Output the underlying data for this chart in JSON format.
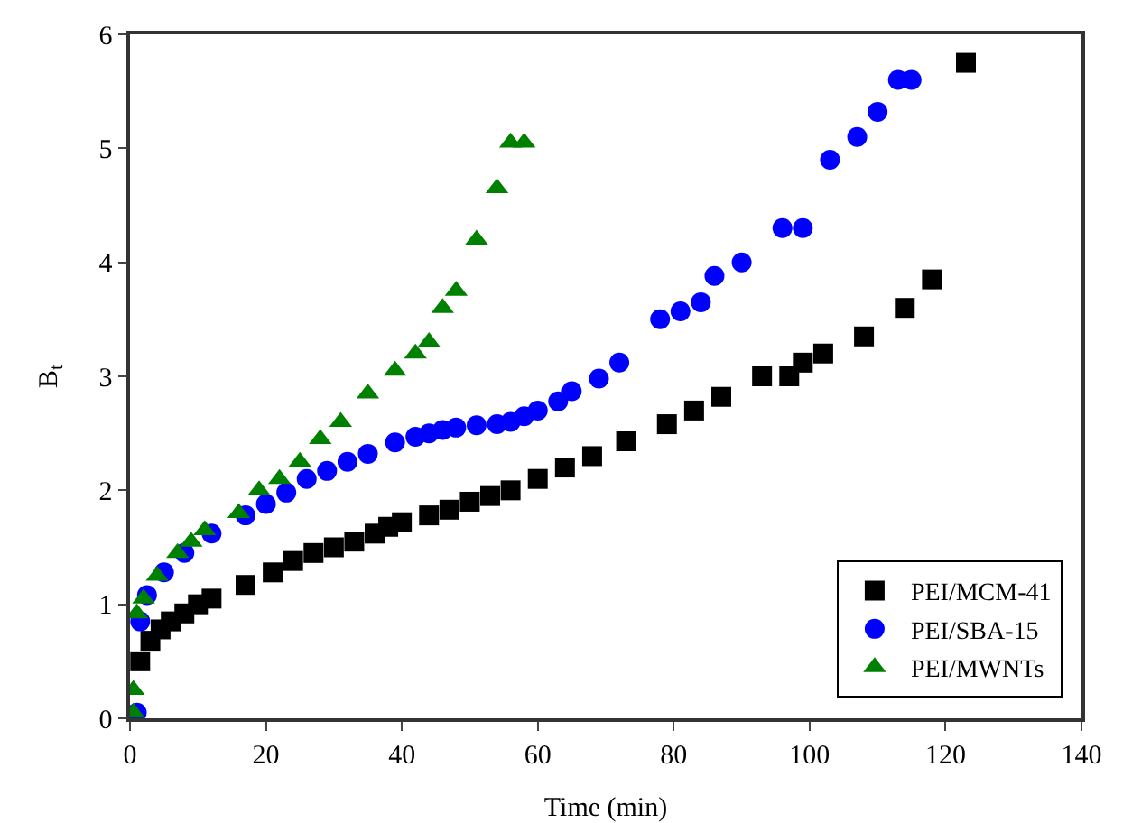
{
  "chart_data": {
    "type": "scatter",
    "xlabel": "Time (min)",
    "ylabel": "B$_{t}$",
    "xlim": [
      0,
      140
    ],
    "ylim": [
      0,
      6
    ],
    "xticks": [
      0,
      20,
      40,
      60,
      80,
      100,
      120,
      140
    ],
    "yticks": [
      0,
      1,
      2,
      3,
      4,
      5,
      6
    ],
    "grid": false,
    "legend": "bottom right",
    "series": [
      {
        "name": "PEI/MCM-41",
        "color": "#000000",
        "marker": "square",
        "x": [
          1.5,
          3,
          4.5,
          6,
          8,
          10,
          12,
          17,
          21,
          24,
          27,
          30,
          33,
          36,
          38,
          40,
          44,
          47,
          50,
          53,
          56,
          60,
          64,
          68,
          73,
          79,
          83,
          87,
          93,
          97,
          99,
          102,
          108,
          114,
          118,
          123
        ],
        "values": [
          0.5,
          0.68,
          0.78,
          0.85,
          0.92,
          1.0,
          1.05,
          1.17,
          1.28,
          1.38,
          1.45,
          1.5,
          1.55,
          1.62,
          1.68,
          1.72,
          1.78,
          1.83,
          1.9,
          1.95,
          2.0,
          2.1,
          2.2,
          2.3,
          2.43,
          2.58,
          2.7,
          2.82,
          3.0,
          3.0,
          3.12,
          3.2,
          3.35,
          3.6,
          3.85,
          5.75
        ]
      },
      {
        "name": "PEI/SBA-15",
        "color": "#0000ff",
        "marker": "circle",
        "x": [
          1,
          1.5,
          2.5,
          5,
          8,
          10,
          12,
          17,
          20,
          23,
          26,
          29,
          32,
          35,
          39,
          42,
          44,
          46,
          48,
          51,
          54,
          56,
          58,
          60,
          63,
          65,
          69,
          72,
          78,
          81,
          84,
          86,
          90,
          96,
          99,
          103,
          107,
          110,
          113,
          115
        ],
        "values": [
          0.05,
          0.85,
          1.08,
          1.28,
          1.45,
          null,
          1.62,
          1.78,
          1.88,
          1.98,
          2.1,
          2.17,
          2.25,
          2.32,
          2.42,
          2.47,
          2.5,
          2.53,
          2.55,
          2.57,
          2.58,
          2.6,
          2.65,
          2.7,
          2.78,
          2.87,
          2.98,
          3.12,
          3.5,
          3.57,
          3.65,
          3.88,
          4.0,
          4.3,
          4.3,
          4.9,
          5.1,
          5.32,
          5.6,
          5.6
        ]
      },
      {
        "name": "PEI/MWNTs",
        "color": "#008000",
        "marker": "triangle",
        "x": [
          0.5,
          0.5,
          1,
          2,
          4,
          7,
          9,
          11,
          16,
          19,
          22,
          25,
          28,
          31,
          35,
          39,
          42,
          44,
          46,
          48,
          51,
          54,
          56,
          58
        ],
        "values": [
          0.05,
          0.25,
          0.92,
          1.05,
          1.25,
          1.45,
          1.55,
          1.65,
          1.8,
          2.0,
          2.1,
          2.25,
          2.45,
          2.6,
          2.85,
          3.05,
          3.2,
          3.3,
          3.6,
          3.75,
          4.2,
          4.65,
          5.05,
          5.05
        ]
      }
    ]
  }
}
